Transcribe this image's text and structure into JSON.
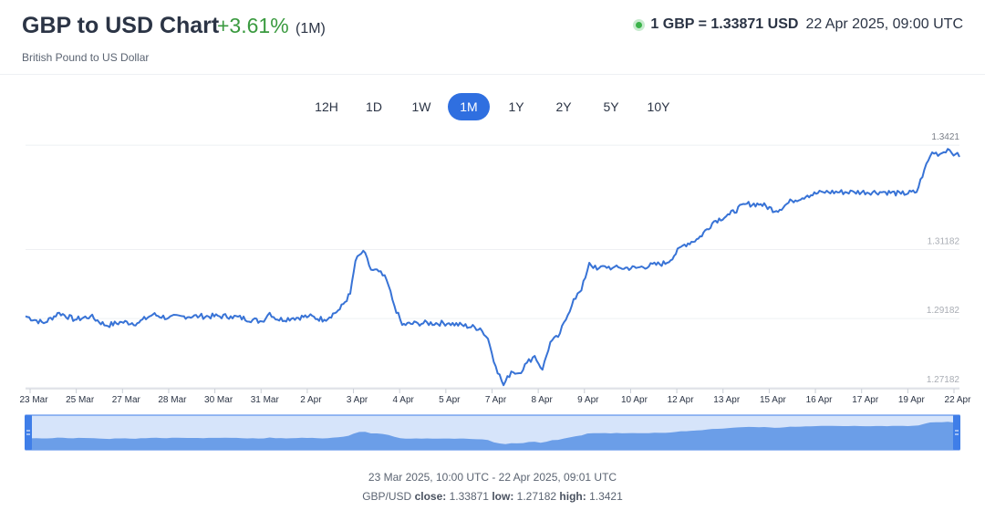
{
  "header": {
    "title": "GBP to USD Chart",
    "change": "+3.61%",
    "period": "(1M)",
    "subtitle": "British Pound to US Dollar",
    "rate": "1 GBP = 1.33871 USD",
    "timestamp": "22 Apr 2025, 09:00 UTC"
  },
  "tabs": [
    {
      "label": "12H",
      "active": false
    },
    {
      "label": "1D",
      "active": false
    },
    {
      "label": "1W",
      "active": false
    },
    {
      "label": "1M",
      "active": true
    },
    {
      "label": "1Y",
      "active": false
    },
    {
      "label": "2Y",
      "active": false
    },
    {
      "label": "5Y",
      "active": false
    },
    {
      "label": "10Y",
      "active": false
    }
  ],
  "colors": {
    "line": "#3873d6",
    "accent": "#2f6fe0",
    "positive": "#3a9a3f",
    "navigator_fill": "#6b9ee8"
  },
  "chart_data": {
    "type": "line",
    "series": [
      {
        "x": [
          "2025-03-23T10:00",
          "2025-03-24T00:00",
          "2025-03-24T12:00",
          "2025-03-25T00:00",
          "2025-03-25T12:00",
          "2025-03-26T00:00",
          "2025-03-26T12:00",
          "2025-03-27T00:00",
          "2025-03-27T12:00",
          "2025-03-28T00:00",
          "2025-03-28T12:00",
          "2025-03-29T00:00",
          "2025-03-30T00:00",
          "2025-03-31T00:00",
          "2025-03-31T06:00",
          "2025-03-31T12:00",
          "2025-04-01T00:00",
          "2025-04-01T12:00",
          "2025-04-02T00:00",
          "2025-04-02T12:00",
          "2025-04-02T20:00",
          "2025-04-03T00:00",
          "2025-04-03T06:00",
          "2025-04-03T12:00",
          "2025-04-03T18:00",
          "2025-04-04T00:00",
          "2025-04-04T06:00",
          "2025-04-04T12:00",
          "2025-04-05T00:00",
          "2025-04-06T00:00",
          "2025-04-07T00:00",
          "2025-04-07T06:00",
          "2025-04-07T12:00",
          "2025-04-07T18:00",
          "2025-04-08T00:00",
          "2025-04-08T06:00",
          "2025-04-08T12:00",
          "2025-04-08T18:00",
          "2025-04-09T00:00",
          "2025-04-09T06:00",
          "2025-04-09T12:00",
          "2025-04-09T18:00",
          "2025-04-10T00:00",
          "2025-04-10T06:00",
          "2025-04-10T12:00",
          "2025-04-10T18:00",
          "2025-04-11T00:00",
          "2025-04-11T06:00",
          "2025-04-11T12:00",
          "2025-04-12T00:00",
          "2025-04-13T00:00",
          "2025-04-13T12:00",
          "2025-04-14T00:00",
          "2025-04-14T12:00",
          "2025-04-15T00:00",
          "2025-04-15T12:00",
          "2025-04-16T00:00",
          "2025-04-16T12:00",
          "2025-04-17T00:00",
          "2025-04-17T12:00",
          "2025-04-18T00:00",
          "2025-04-19T00:00",
          "2025-04-20T00:00",
          "2025-04-20T12:00",
          "2025-04-21T00:00",
          "2025-04-21T06:00",
          "2025-04-21T12:00",
          "2025-04-21T18:00",
          "2025-04-22T00:00",
          "2025-04-22T06:00",
          "2025-04-22T09:00"
        ],
        "y": [
          1.2925,
          1.2905,
          1.2935,
          1.2915,
          1.2925,
          1.2898,
          1.2908,
          1.2905,
          1.293,
          1.292,
          1.2925,
          1.2925,
          1.2925,
          1.291,
          1.2935,
          1.2915,
          1.292,
          1.2925,
          1.2915,
          1.2945,
          1.299,
          1.3085,
          1.3115,
          1.306,
          1.3055,
          1.303,
          1.2955,
          1.29,
          1.2905,
          1.2905,
          1.289,
          1.286,
          1.278,
          1.2725,
          1.2765,
          1.276,
          1.279,
          1.281,
          1.277,
          1.285,
          1.2865,
          1.2915,
          1.2975,
          1.3,
          1.308,
          1.306,
          1.307,
          1.3065,
          1.3065,
          1.3065,
          1.308,
          1.313,
          1.315,
          1.32,
          1.322,
          1.325,
          1.325,
          1.323,
          1.326,
          1.3275,
          1.3285,
          1.3285,
          1.3285,
          1.328,
          1.3285,
          1.335,
          1.34,
          1.3395,
          1.341,
          1.3395,
          1.3387
        ]
      }
    ],
    "y_ticks": [
      "1.3421",
      "1.31182",
      "1.29182",
      "1.27182"
    ],
    "x_tick_labels": [
      "23 Mar",
      "25 Mar",
      "27 Mar",
      "28 Mar",
      "30 Mar",
      "31 Mar",
      "2 Apr",
      "3 Apr",
      "4 Apr",
      "5 Apr",
      "7 Apr",
      "8 Apr",
      "9 Apr",
      "10 Apr",
      "12 Apr",
      "13 Apr",
      "15 Apr",
      "16 Apr",
      "17 Apr",
      "19 Apr",
      "22 Apr"
    ],
    "x_range": [
      "2025-03-23T10:00",
      "2025-04-22T09:01"
    ],
    "ylim": [
      1.2715,
      1.3445
    ],
    "grid": true,
    "navigator": true
  },
  "footer": {
    "range_text": "23 Mar 2025, 10:00 UTC - 22 Apr 2025, 09:01 UTC",
    "pair": "GBP/USD",
    "close_label": "close:",
    "close_value": "1.33871",
    "low_label": "low:",
    "low_value": "1.27182",
    "high_label": "high:",
    "high_value": "1.3421"
  }
}
